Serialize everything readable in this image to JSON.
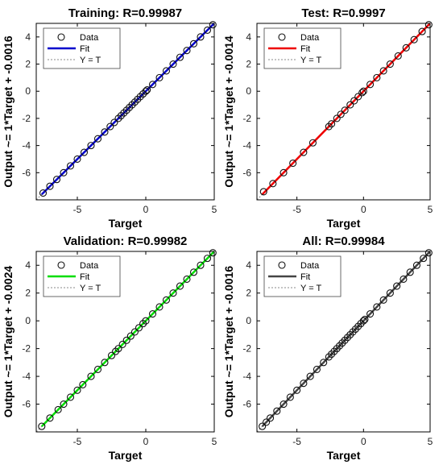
{
  "chart_data": [
    {
      "type": "scatter",
      "title": "Training: R=0.99987",
      "xlabel": "Target",
      "ylabel": "Output ~= 1*Target + -0.0016",
      "xlim": [
        -8,
        5
      ],
      "ylim": [
        -8,
        5
      ],
      "xticks": [
        "-5",
        "0",
        "5"
      ],
      "yticks": [
        "-6",
        "-4",
        "-2",
        "0",
        "2",
        "4"
      ],
      "fit_color": "#0000cc",
      "legend": [
        "Data",
        "Fit",
        "Y = T"
      ],
      "legend_position": "top-left",
      "points": [
        [
          -7.5,
          -7.5
        ],
        [
          -7.0,
          -7.0
        ],
        [
          -6.5,
          -6.5
        ],
        [
          -6.0,
          -6.0
        ],
        [
          -5.5,
          -5.5
        ],
        [
          -5.0,
          -5.0
        ],
        [
          -4.5,
          -4.5
        ],
        [
          -4.0,
          -4.0
        ],
        [
          -3.5,
          -3.5
        ],
        [
          -3.0,
          -3.0
        ],
        [
          -2.6,
          -2.6
        ],
        [
          -2.3,
          -2.3
        ],
        [
          -2.0,
          -2.0
        ],
        [
          -1.8,
          -1.8
        ],
        [
          -1.6,
          -1.6
        ],
        [
          -1.4,
          -1.4
        ],
        [
          -1.2,
          -1.2
        ],
        [
          -1.0,
          -1.0
        ],
        [
          -0.8,
          -0.8
        ],
        [
          -0.6,
          -0.6
        ],
        [
          -0.4,
          -0.4
        ],
        [
          -0.2,
          -0.2
        ],
        [
          0.0,
          0.0
        ],
        [
          0.1,
          0.1
        ],
        [
          0.5,
          0.5
        ],
        [
          1.0,
          1.0
        ],
        [
          1.5,
          1.5
        ],
        [
          2.0,
          2.0
        ],
        [
          2.5,
          2.5
        ],
        [
          3.0,
          3.0
        ],
        [
          3.5,
          3.5
        ],
        [
          4.0,
          4.0
        ],
        [
          4.5,
          4.5
        ],
        [
          4.9,
          4.9
        ]
      ]
    },
    {
      "type": "scatter",
      "title": "Test: R=0.9997",
      "xlabel": "Target",
      "ylabel": "Output ~= 1*Target + -0.0014",
      "xlim": [
        -8,
        5
      ],
      "ylim": [
        -8,
        5
      ],
      "xticks": [
        "-5",
        "0",
        "5"
      ],
      "yticks": [
        "-6",
        "-4",
        "-2",
        "0",
        "2",
        "4"
      ],
      "fit_color": "#ee0000",
      "legend": [
        "Data",
        "Fit",
        "Y = T"
      ],
      "legend_position": "top-left",
      "points": [
        [
          -7.5,
          -7.4
        ],
        [
          -6.8,
          -6.8
        ],
        [
          -6.0,
          -6.0
        ],
        [
          -5.3,
          -5.3
        ],
        [
          -4.5,
          -4.5
        ],
        [
          -3.8,
          -3.8
        ],
        [
          -2.6,
          -2.6
        ],
        [
          -2.4,
          -2.4
        ],
        [
          -2.0,
          -2.0
        ],
        [
          -1.7,
          -1.7
        ],
        [
          -1.4,
          -1.4
        ],
        [
          -1.0,
          -1.0
        ],
        [
          -0.7,
          -0.7
        ],
        [
          -0.4,
          -0.4
        ],
        [
          -0.1,
          -0.1
        ],
        [
          0.0,
          0.0
        ],
        [
          0.5,
          0.5
        ],
        [
          1.0,
          1.0
        ],
        [
          1.5,
          1.5
        ],
        [
          2.0,
          2.0
        ],
        [
          2.6,
          2.6
        ],
        [
          3.2,
          3.2
        ],
        [
          3.8,
          3.8
        ],
        [
          4.4,
          4.4
        ],
        [
          4.9,
          4.9
        ]
      ]
    },
    {
      "type": "scatter",
      "title": "Validation: R=0.99982",
      "xlabel": "Target",
      "ylabel": "Output ~= 1*Target + -0.0024",
      "xlim": [
        -8,
        5
      ],
      "ylim": [
        -8,
        5
      ],
      "xticks": [
        "-5",
        "0",
        "5"
      ],
      "yticks": [
        "-6",
        "-4",
        "-2",
        "0",
        "2",
        "4"
      ],
      "fit_color": "#00dd00",
      "legend": [
        "Data",
        "Fit",
        "Y = T"
      ],
      "legend_position": "top-left",
      "points": [
        [
          -7.6,
          -7.6
        ],
        [
          -7.0,
          -7.0
        ],
        [
          -6.4,
          -6.4
        ],
        [
          -6.0,
          -6.0
        ],
        [
          -5.5,
          -5.5
        ],
        [
          -5.0,
          -5.0
        ],
        [
          -4.6,
          -4.6
        ],
        [
          -4.0,
          -4.0
        ],
        [
          -3.5,
          -3.5
        ],
        [
          -3.0,
          -3.0
        ],
        [
          -2.5,
          -2.5
        ],
        [
          -2.2,
          -2.2
        ],
        [
          -2.0,
          -2.0
        ],
        [
          -1.7,
          -1.7
        ],
        [
          -1.4,
          -1.4
        ],
        [
          -1.1,
          -1.1
        ],
        [
          -0.8,
          -0.8
        ],
        [
          -0.5,
          -0.5
        ],
        [
          -0.2,
          -0.2
        ],
        [
          0.0,
          0.0
        ],
        [
          0.5,
          0.5
        ],
        [
          1.0,
          1.0
        ],
        [
          1.5,
          1.5
        ],
        [
          2.0,
          2.0
        ],
        [
          2.5,
          2.5
        ],
        [
          3.0,
          3.0
        ],
        [
          3.5,
          3.5
        ],
        [
          4.0,
          4.0
        ],
        [
          4.5,
          4.5
        ],
        [
          4.9,
          4.9
        ]
      ]
    },
    {
      "type": "scatter",
      "title": "All: R=0.99984",
      "xlabel": "Target",
      "ylabel": "Output ~= 1*Target + -0.0016",
      "xlim": [
        -8,
        5
      ],
      "ylim": [
        -8,
        5
      ],
      "xticks": [
        "-5",
        "0",
        "5"
      ],
      "yticks": [
        "-6",
        "-4",
        "-2",
        "0",
        "2",
        "4"
      ],
      "fit_color": "#444444",
      "legend": [
        "Data",
        "Fit",
        "Y = T"
      ],
      "legend_position": "top-left",
      "points": [
        [
          -7.6,
          -7.6
        ],
        [
          -7.3,
          -7.3
        ],
        [
          -7.0,
          -7.0
        ],
        [
          -6.5,
          -6.5
        ],
        [
          -6.0,
          -6.0
        ],
        [
          -5.5,
          -5.5
        ],
        [
          -5.0,
          -5.0
        ],
        [
          -4.5,
          -4.5
        ],
        [
          -4.0,
          -4.0
        ],
        [
          -3.5,
          -3.5
        ],
        [
          -3.0,
          -3.0
        ],
        [
          -2.6,
          -2.6
        ],
        [
          -2.4,
          -2.4
        ],
        [
          -2.2,
          -2.2
        ],
        [
          -2.0,
          -2.0
        ],
        [
          -1.8,
          -1.8
        ],
        [
          -1.6,
          -1.6
        ],
        [
          -1.4,
          -1.4
        ],
        [
          -1.2,
          -1.2
        ],
        [
          -1.0,
          -1.0
        ],
        [
          -0.8,
          -0.8
        ],
        [
          -0.6,
          -0.6
        ],
        [
          -0.4,
          -0.4
        ],
        [
          -0.2,
          -0.2
        ],
        [
          0.0,
          0.0
        ],
        [
          0.1,
          0.1
        ],
        [
          0.5,
          0.5
        ],
        [
          1.0,
          1.0
        ],
        [
          1.5,
          1.5
        ],
        [
          2.0,
          2.0
        ],
        [
          2.5,
          2.5
        ],
        [
          3.0,
          3.0
        ],
        [
          3.5,
          3.5
        ],
        [
          4.0,
          4.0
        ],
        [
          4.5,
          4.5
        ],
        [
          4.9,
          4.9
        ]
      ]
    }
  ]
}
